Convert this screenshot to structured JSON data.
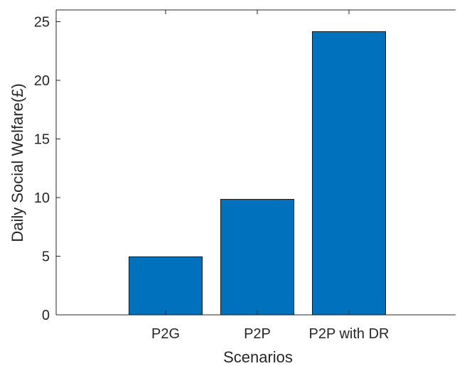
{
  "chart_data": {
    "type": "bar",
    "categories": [
      "P2G",
      "P2P",
      "P2P with DR"
    ],
    "values": [
      4.95,
      9.85,
      24.15
    ],
    "xlabel": "Scenarios",
    "ylabel": "Daily Social Welfare(£)",
    "ylim": [
      0,
      26
    ],
    "yticks": [
      0,
      5,
      10,
      15,
      20,
      25
    ],
    "grid": false,
    "colors": {
      "bar": "#0072BD",
      "bar_edge": "#1a1a1a",
      "axis": "#262626"
    }
  }
}
